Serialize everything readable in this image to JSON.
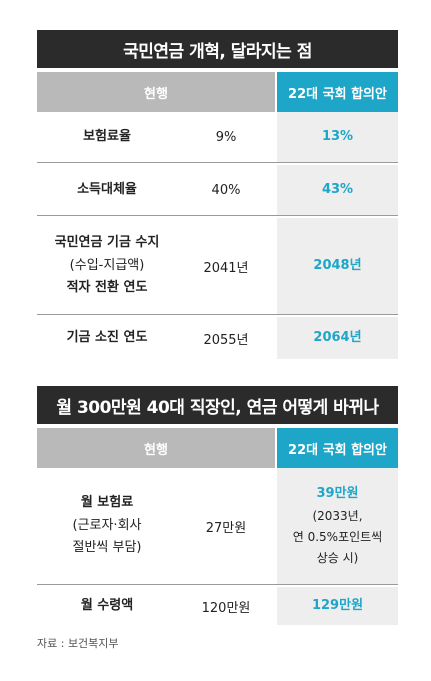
{
  "section1": {
    "title": "국민연금 개혁, 달라지는 점",
    "header_current": "현행",
    "header_new": "22대 국회 합의안",
    "rows": [
      {
        "label": "보험료율",
        "current": "9%",
        "new": "13%"
      },
      {
        "label": "소득대체율",
        "current": "40%",
        "new": "43%"
      },
      {
        "label_line1": "국민연금 기금 수지",
        "label_line2": "(수입-지급액)",
        "label_line3": "적자 전환 연도",
        "current": "2041년",
        "new": "2048년"
      },
      {
        "label": "기금 소진 연도",
        "current": "2055년",
        "new": "2064년"
      }
    ]
  },
  "section2": {
    "title": "월 300만원 40대 직장인, 연금 어떻게 바뀌나",
    "header_current": "현행",
    "header_new": "22대 국회 합의안",
    "rows": [
      {
        "label_line1": "월 보험료",
        "label_line2": "(근로자·회사",
        "label_line3": "절반씩 부담)",
        "current": "27만원",
        "new": "39만원",
        "note_line1": "(2033년,",
        "note_line2": "연 0.5%포인트씩",
        "note_line3": "상승 시)"
      },
      {
        "label": "월 수령액",
        "current": "120만원",
        "new": "129만원"
      }
    ]
  },
  "source": "자료 : 보건복지부",
  "colors": {
    "accent": "#1ea6c8",
    "title_bg": "#2b2b2b",
    "header_gray": "#b9b9b9",
    "new_col_bg": "#eeeeee"
  }
}
